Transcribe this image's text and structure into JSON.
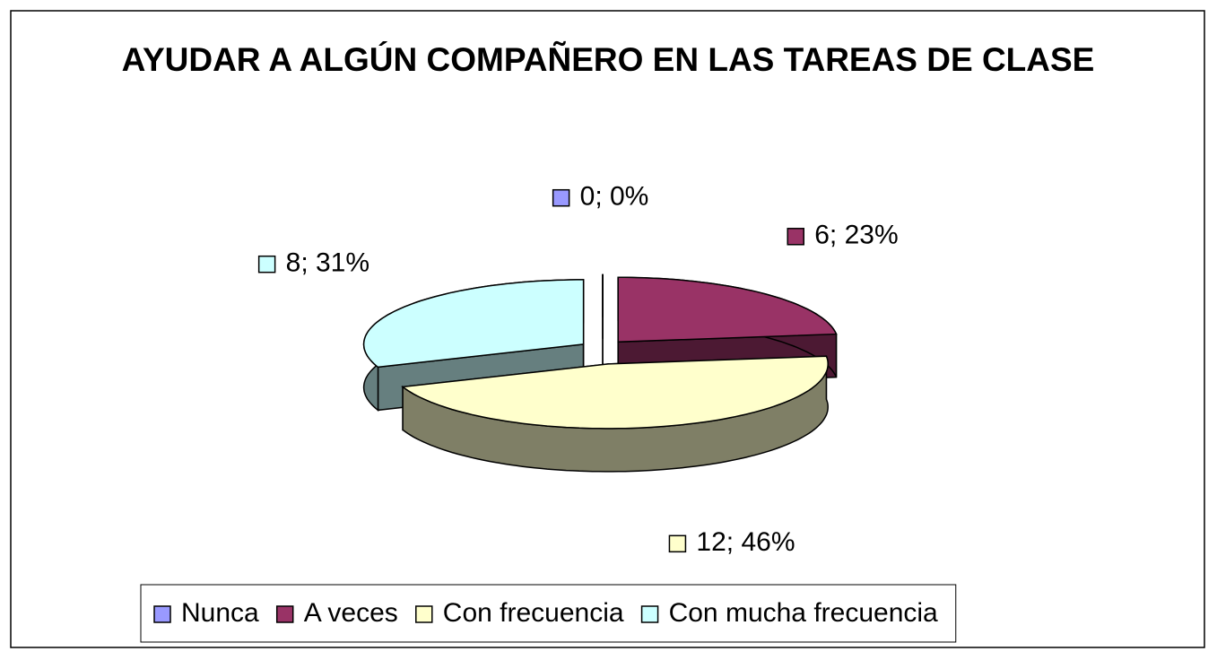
{
  "chart_data": {
    "type": "pie3d",
    "title": "AYUDAR A ALGÚN COMPAÑERO EN LAS TAREAS DE CLASE",
    "categories": [
      "Nunca",
      "A veces",
      "Con frecuencia",
      "Con mucha frecuencia"
    ],
    "values": [
      0,
      6,
      12,
      8
    ],
    "value_labels": [
      "0; 0%",
      "6; 23%",
      "12; 46%",
      "8; 31%"
    ],
    "colors": [
      "#9999ff",
      "#993366",
      "#ffffcc",
      "#ccffff"
    ],
    "legend": "bottom"
  }
}
